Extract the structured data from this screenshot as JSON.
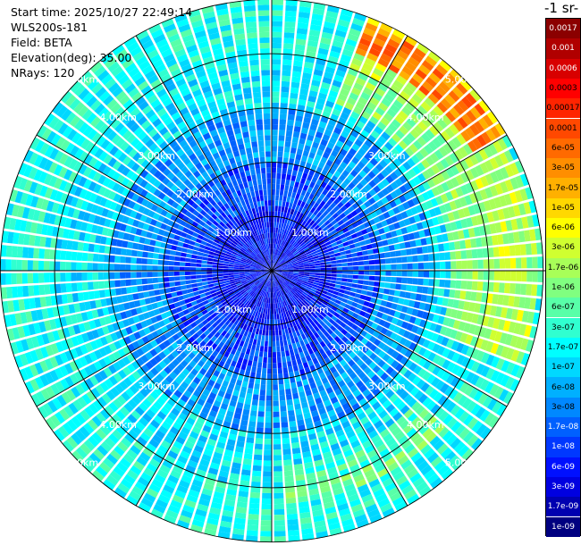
{
  "chart_data": {
    "type": "heatmap",
    "subtype": "ppi-polar",
    "info": {
      "start_time": "Start time: 2025/10/27 22:49:14",
      "instrument": "WLS200s-181",
      "field": "Field: BETA",
      "elevation": "Elevation(deg): 35.00",
      "nrays": "NRays: 120"
    },
    "units_label": "-1 sr-",
    "n_rays": 120,
    "range_rings_km": [
      1,
      2,
      3,
      4,
      5
    ],
    "ring_labels": [
      "1.00km",
      "2.00km",
      "3.00km",
      "4.00km",
      "5.00km"
    ],
    "max_range_km": 5.0,
    "spokes_deg": [
      0,
      30,
      60,
      90,
      120,
      150,
      180,
      210,
      240,
      270,
      300,
      330
    ],
    "colorbar": {
      "labels": [
        "0.0017",
        "0.001",
        "0.0006",
        "0.0003",
        "0.00017",
        "0.0001",
        "6e-05",
        "3e-05",
        "1.7e-05",
        "1e-05",
        "6e-06",
        "3e-06",
        "1.7e-06",
        "1e-06",
        "6e-07",
        "3e-07",
        "1.7e-07",
        "1e-07",
        "6e-08",
        "3e-08",
        "1.7e-08",
        "1e-08",
        "6e-09",
        "3e-09",
        "1.7e-09",
        "1e-09"
      ],
      "colors": [
        "#8b0000",
        "#b00000",
        "#d80000",
        "#ff0000",
        "#ff2400",
        "#ff4800",
        "#ff6a00",
        "#ff8e00",
        "#ffb000",
        "#ffd800",
        "#ffff00",
        "#d0ff30",
        "#a8ff58",
        "#80ff80",
        "#58ffa8",
        "#30ffd0",
        "#00ffff",
        "#00d8ff",
        "#00b0ff",
        "#0088ff",
        "#0060ff",
        "#0038ff",
        "#0010ff",
        "#0000e0",
        "#0000b0",
        "#000080"
      ]
    }
  }
}
